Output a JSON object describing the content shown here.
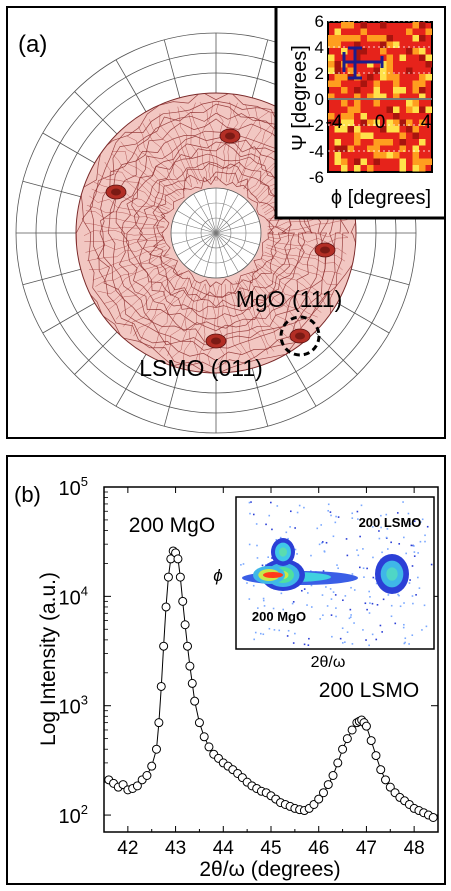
{
  "panel_a": {
    "label": "(a)",
    "annotations": {
      "mgo": "MgO (111)",
      "lsmo": "LSMO (011)"
    },
    "inset": {
      "y_label": "Ψ [degrees]",
      "x_label": "ϕ [degrees]",
      "y_ticks": [
        "6",
        "4",
        "2",
        "0",
        "-2",
        "-4",
        "-6"
      ],
      "x_ticks": [
        "-4",
        "0",
        "4"
      ]
    }
  },
  "panel_b": {
    "label": "(b)",
    "annotations": {
      "mgo": "200 MgO",
      "lsmo": "200 LSMO"
    },
    "inset": {
      "label_lsmo": "200 LSMO",
      "label_mgo": "200 MgO",
      "x_label": "2θ/ω",
      "y_label": "ϕ"
    }
  },
  "chart_data": {
    "type": "scatter",
    "xlabel": "2θ/ω (degrees)",
    "ylabel": "Log Intensity (a.u.)",
    "xlim": [
      41.5,
      48.5
    ],
    "ylim": [
      70,
      100000
    ],
    "yscale": "log",
    "x_ticks": [
      "42",
      "43",
      "44",
      "45",
      "46",
      "47",
      "48"
    ],
    "y_ticks": [
      {
        "base": "10",
        "exp": "2",
        "value": 100
      },
      {
        "base": "10",
        "exp": "3",
        "value": 1000
      },
      {
        "base": "10",
        "exp": "4",
        "value": 10000
      },
      {
        "base": "10",
        "exp": "5",
        "value": 100000
      }
    ],
    "series": [
      {
        "x": [
          41.6,
          41.7,
          41.8,
          41.9,
          42.0,
          42.1,
          42.2,
          42.3,
          42.4,
          42.5,
          42.6,
          42.65,
          42.7,
          42.75,
          42.8,
          42.85,
          42.9,
          42.95,
          43.0,
          43.05,
          43.1,
          43.15,
          43.2,
          43.25,
          43.3,
          43.35,
          43.4,
          43.5,
          43.6,
          43.7,
          43.8,
          43.9,
          44.0,
          44.1,
          44.2,
          44.3,
          44.4,
          44.5,
          44.6,
          44.7,
          44.8,
          44.9,
          45.0,
          45.1,
          45.2,
          45.3,
          45.4,
          45.5,
          45.6,
          45.7,
          45.8,
          45.9,
          46.0,
          46.1,
          46.2,
          46.3,
          46.4,
          46.5,
          46.6,
          46.7,
          46.8,
          46.85,
          46.9,
          46.95,
          47.0,
          47.1,
          47.2,
          47.3,
          47.4,
          47.5,
          47.6,
          47.7,
          47.8,
          47.9,
          48.0,
          48.1,
          48.2,
          48.3,
          48.4
        ],
        "y": [
          210,
          195,
          180,
          190,
          170,
          175,
          185,
          210,
          230,
          280,
          400,
          700,
          1500,
          3500,
          8000,
          15000,
          22000,
          26000,
          25000,
          22000,
          15000,
          9000,
          5500,
          3500,
          2300,
          1600,
          1100,
          700,
          520,
          420,
          360,
          330,
          300,
          280,
          260,
          240,
          220,
          200,
          185,
          175,
          165,
          160,
          150,
          140,
          130,
          125,
          120,
          115,
          112,
          110,
          115,
          125,
          140,
          160,
          190,
          230,
          300,
          400,
          500,
          600,
          700,
          720,
          740,
          700,
          650,
          480,
          350,
          260,
          210,
          180,
          160,
          145,
          135,
          125,
          115,
          110,
          105,
          100,
          95
        ]
      }
    ]
  }
}
